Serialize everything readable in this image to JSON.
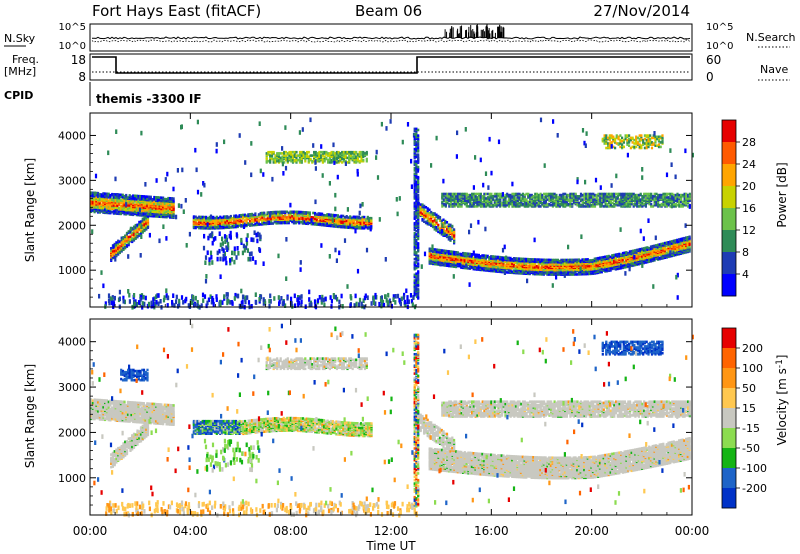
{
  "header": {
    "station": "Fort Hays East (fitACF)",
    "beam": "Beam 06",
    "date": "27/Nov/2014"
  },
  "top_panels": {
    "nsky_label": "N.Sky",
    "nsky_ticks": [
      "10^5",
      "10^0"
    ],
    "nsearch_label": "N.Search",
    "nsearch_ticks": [
      "10^5",
      "10^0"
    ],
    "freq_label_1": "Freq.",
    "freq_label_2": "[MHz]",
    "freq_ticks": [
      "18",
      "8"
    ],
    "nave_label": "Nave",
    "nave_ticks": [
      "60",
      "0"
    ],
    "cpid_label": "CPID",
    "cpid_value": "themis -3300 IF"
  },
  "chart_data": [
    {
      "type": "heatmap",
      "name": "power",
      "ylabel": "Slant Range [km]",
      "yticks": [
        1000,
        2000,
        3000,
        4000
      ],
      "ylim": [
        180,
        4500
      ],
      "xlim": [
        0,
        24
      ],
      "colorbar_label": "Power [dB]",
      "colorbar_ticks": [
        "28",
        "24",
        "20",
        "16",
        "12",
        "8",
        "4"
      ],
      "colors": [
        "#0000ff",
        "#1e3cb4",
        "#2e8b57",
        "#6cc24a",
        "#c8d200",
        "#ffa500",
        "#ff5a00",
        "#e60000"
      ]
    },
    {
      "type": "heatmap",
      "name": "velocity",
      "ylabel": "Slant Range [km]",
      "yticks": [
        1000,
        2000,
        3000,
        4000
      ],
      "ylim": [
        180,
        4500
      ],
      "xlim": [
        0,
        24
      ],
      "colorbar_label": "Velocity [m s",
      "colorbar_label_sup": "-1",
      "colorbar_label_end": "]",
      "colorbar_ticks": [
        "200",
        "100",
        "50",
        "15",
        "-15",
        "-50",
        "-100",
        "-200"
      ],
      "colors": [
        "#0032c8",
        "#1e64c8",
        "#14b414",
        "#8cdc50",
        "#c8c8c0",
        "#ffc850",
        "#ff9614",
        "#ff6400",
        "#e60000"
      ]
    }
  ],
  "time_axis": {
    "ticks": [
      "00:00",
      "04:00",
      "08:00",
      "12:00",
      "16:00",
      "20:00",
      "00:00"
    ],
    "label": "Time UT"
  }
}
